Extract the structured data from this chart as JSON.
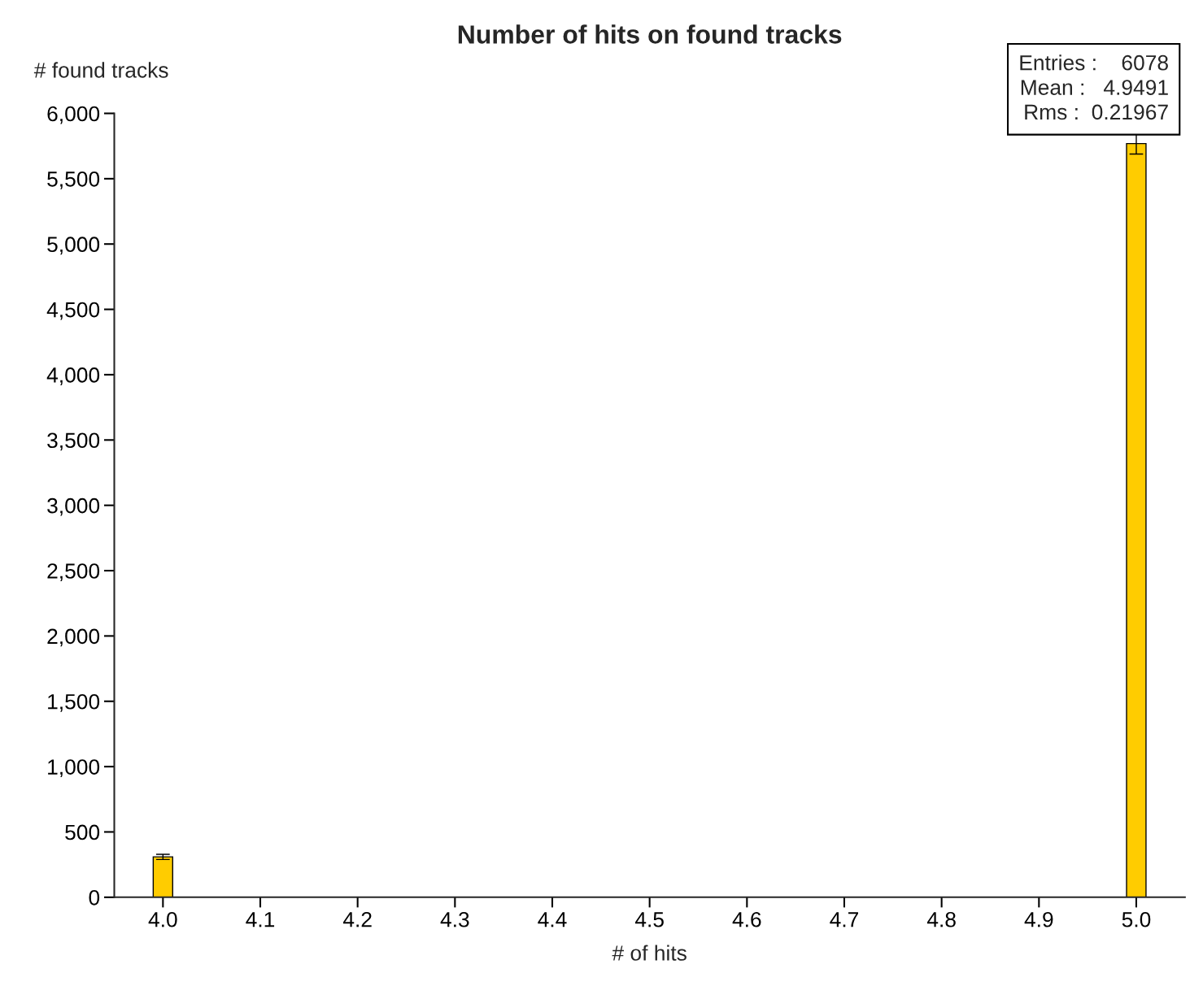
{
  "chart_data": {
    "type": "histogram",
    "title": "Number of hits on found tracks",
    "xlabel": "# of hits",
    "ylabel": "# found tracks",
    "bins": [
      3.99,
      4.01,
      4.03,
      4.05,
      4.07,
      4.09,
      4.11,
      4.13,
      4.15,
      4.17,
      4.19,
      4.21,
      4.23,
      4.25,
      4.27,
      4.29,
      4.31,
      4.33,
      4.35,
      4.37,
      4.39,
      4.41,
      4.43,
      4.45,
      4.47,
      4.49,
      4.51,
      4.53,
      4.55,
      4.57,
      4.59,
      4.61,
      4.63,
      4.65,
      4.67,
      4.69,
      4.71,
      4.73,
      4.75,
      4.77,
      4.79,
      4.81,
      4.83,
      4.85,
      4.87,
      4.89,
      4.91,
      4.93,
      4.95,
      4.97,
      4.99,
      5.01
    ],
    "values": [
      309,
      0,
      0,
      0,
      0,
      0,
      0,
      0,
      0,
      0,
      0,
      0,
      0,
      0,
      0,
      0,
      0,
      0,
      0,
      0,
      0,
      0,
      0,
      0,
      0,
      0,
      0,
      0,
      0,
      0,
      0,
      0,
      0,
      0,
      0,
      0,
      0,
      0,
      0,
      0,
      0,
      0,
      0,
      0,
      0,
      0,
      0,
      0,
      0,
      0,
      5769
    ],
    "errors": [
      20,
      null,
      null,
      null,
      null,
      null,
      null,
      null,
      null,
      null,
      null,
      null,
      null,
      null,
      null,
      null,
      null,
      null,
      null,
      null,
      null,
      null,
      null,
      null,
      null,
      null,
      null,
      null,
      null,
      null,
      null,
      null,
      null,
      null,
      null,
      null,
      null,
      null,
      null,
      null,
      null,
      null,
      null,
      null,
      null,
      null,
      null,
      null,
      null,
      null,
      80
    ],
    "color": "#ffcc00",
    "xlim": [
      3.95,
      5.05
    ],
    "xticks": [
      {
        "value": 4,
        "label": "4.0"
      },
      4.1,
      4.2,
      4.3,
      4.4,
      4.5,
      4.6,
      4.7,
      4.8,
      4.9,
      {
        "value": 5,
        "label": "5.0"
      }
    ],
    "ylim": [
      0,
      6000
    ],
    "yticks": [
      0,
      500,
      {
        "value": 1000,
        "label": "1,000"
      },
      {
        "value": 1500,
        "label": "1,500"
      },
      {
        "value": 2000,
        "label": "2,000"
      },
      {
        "value": 2500,
        "label": "2,500"
      },
      {
        "value": 3000,
        "label": "3,000"
      },
      {
        "value": 3500,
        "label": "3,500"
      },
      {
        "value": 4000,
        "label": "4,000"
      },
      {
        "value": 4500,
        "label": "4,500"
      },
      {
        "value": 5000,
        "label": "5,000"
      },
      {
        "value": 5500,
        "label": "5,500"
      },
      {
        "value": 6000,
        "label": "6,000"
      }
    ],
    "grid": false,
    "legend": false,
    "annotations": [
      "Entries :    6078",
      "Mean :   4.9491",
      "Rms :  0.21967"
    ]
  }
}
